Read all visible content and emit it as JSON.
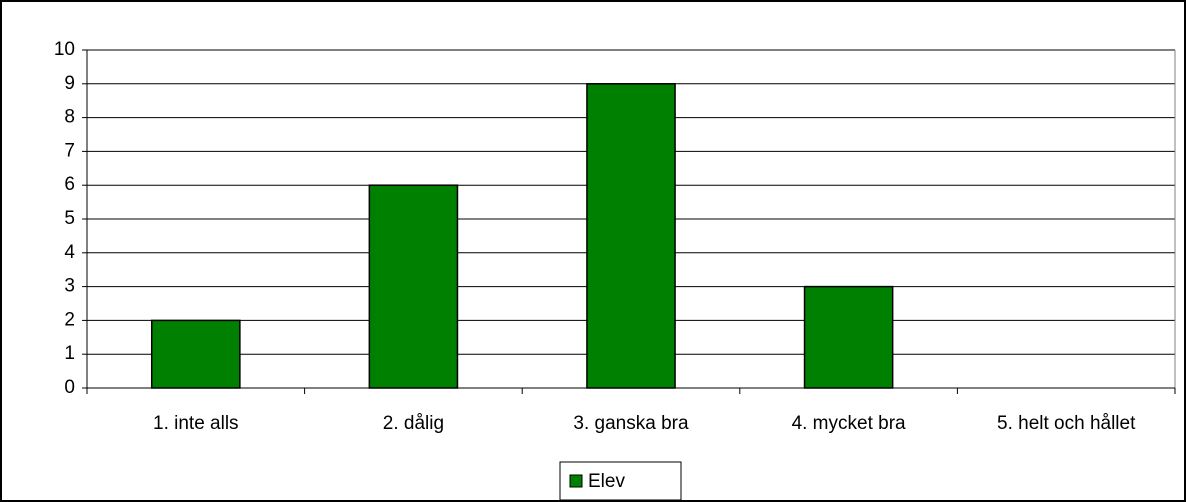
{
  "chart_data": {
    "type": "bar",
    "categories": [
      "1. inte alls",
      "2. dålig",
      "3. ganska bra",
      "4. mycket bra",
      "5. helt och hållet"
    ],
    "series": [
      {
        "name": "Elev",
        "color": "#008000",
        "values": [
          2,
          6,
          9,
          3,
          0
        ]
      }
    ],
    "ylim": [
      0,
      10
    ],
    "yticks": [
      0,
      1,
      2,
      3,
      4,
      5,
      6,
      7,
      8,
      9,
      10
    ],
    "grid": true,
    "legend": "bottom"
  }
}
